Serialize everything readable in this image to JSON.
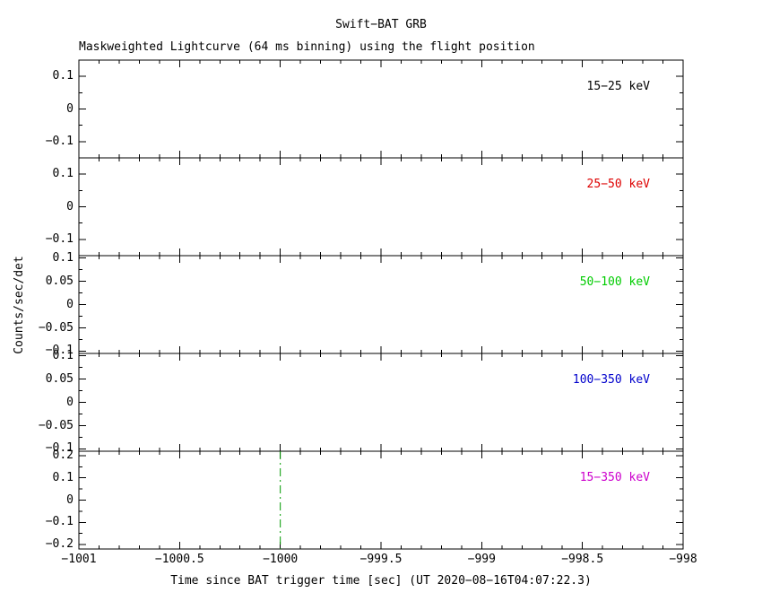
{
  "chart_data": {
    "type": "line",
    "title": "Swift−BAT GRB",
    "subtitle": "Maskweighted Lightcurve (64 ms binning) using the flight position",
    "ylabel": "Counts/sec/det",
    "xlabel": "Time since BAT trigger time [sec] (UT 2020−08−16T04:07:22.3)",
    "xlim": [
      -1001,
      -998
    ],
    "x_minor_step": 0.1,
    "grid": false,
    "legend_position": "inside-top-right-per-panel",
    "x_ticks": [
      {
        "value": -1001,
        "label": "−1001"
      },
      {
        "value": -1000.5,
        "label": "−1000.5"
      },
      {
        "value": -1000,
        "label": "−1000"
      },
      {
        "value": -999.5,
        "label": "−999.5"
      },
      {
        "value": -999,
        "label": "−999"
      },
      {
        "value": -998.5,
        "label": "−998.5"
      },
      {
        "value": -998,
        "label": "−998"
      }
    ],
    "panels": [
      {
        "band": "15−25 keV",
        "color": "#000000",
        "ylim": [
          -0.15,
          0.15
        ],
        "y_minor_step": 0.05,
        "yticks": [
          {
            "value": 0.1,
            "label": "0.1"
          },
          {
            "value": 0,
            "label": "0"
          },
          {
            "value": -0.1,
            "label": "−0.1"
          }
        ],
        "points": [],
        "note": "flat near 0 counts/sec/det; no visible signal in shown window"
      },
      {
        "band": "25−50 keV",
        "color": "#dd0000",
        "ylim": [
          -0.15,
          0.15
        ],
        "y_minor_step": 0.05,
        "yticks": [
          {
            "value": 0.1,
            "label": "0.1"
          },
          {
            "value": 0,
            "label": "0"
          },
          {
            "value": -0.1,
            "label": "−0.1"
          }
        ],
        "points": [],
        "note": "flat near 0 counts/sec/det; no visible signal in shown window"
      },
      {
        "band": "50−100 keV",
        "color": "#00cc00",
        "ylim": [
          -0.105,
          0.105
        ],
        "y_minor_step": 0.025,
        "yticks": [
          {
            "value": 0.1,
            "label": "0.1"
          },
          {
            "value": 0.05,
            "label": "0.05"
          },
          {
            "value": 0,
            "label": "0"
          },
          {
            "value": -0.05,
            "label": "−0.05"
          },
          {
            "value": -0.1,
            "label": "−0.1"
          }
        ],
        "points": [],
        "note": "flat near 0 counts/sec/det; no visible signal in shown window"
      },
      {
        "band": "100−350 keV",
        "color": "#0000cc",
        "ylim": [
          -0.105,
          0.105
        ],
        "y_minor_step": 0.025,
        "yticks": [
          {
            "value": 0.1,
            "label": "0.1"
          },
          {
            "value": 0.05,
            "label": "0.05"
          },
          {
            "value": 0,
            "label": "0"
          },
          {
            "value": -0.05,
            "label": "−0.05"
          },
          {
            "value": -0.1,
            "label": "−0.1"
          }
        ],
        "points": [],
        "note": "flat near 0 counts/sec/det; no visible signal in shown window"
      },
      {
        "band": "15−350 keV",
        "color": "#cc00cc",
        "ylim": [
          -0.22,
          0.22
        ],
        "y_minor_step": 0.05,
        "yticks": [
          {
            "value": 0.2,
            "label": "0.2"
          },
          {
            "value": 0.1,
            "label": "0.1"
          },
          {
            "value": 0,
            "label": "0"
          },
          {
            "value": -0.1,
            "label": "−0.1"
          },
          {
            "value": -0.2,
            "label": "−0.2"
          }
        ],
        "points": [],
        "note": "flat near 0 counts/sec/det; vertical trigger-time marker at x = −1000"
      }
    ],
    "trigger_marker": {
      "x": -1000,
      "color": "#009900",
      "style": "dash-dot",
      "panel_band": "15−350 keV"
    }
  }
}
